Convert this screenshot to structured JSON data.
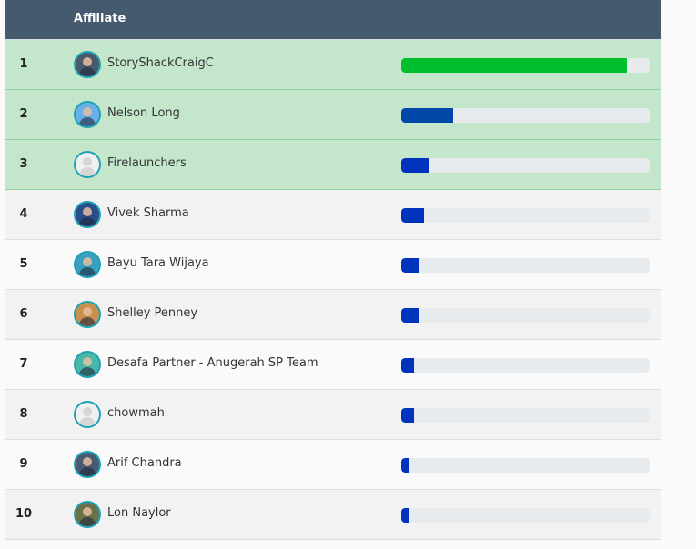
{
  "header": {
    "affiliate_label": "Affiliate"
  },
  "colors": {
    "header_bg": "#455a6e",
    "top_row_bg": "#c4e6cb",
    "first_bar": "#00bf2f",
    "second_bar": "#0047a8",
    "other_bar": "#0033bb",
    "track": "#e8ebee"
  },
  "rows": [
    {
      "rank": "1",
      "name": "StoryShackCraigC",
      "progress": 91,
      "avatar": "photo",
      "avatar_color": "#4a5a6a"
    },
    {
      "rank": "2",
      "name": "Nelson Long",
      "progress": 21,
      "avatar": "photo",
      "avatar_color": "#6ab0e8"
    },
    {
      "rank": "3",
      "name": "Firelaunchers",
      "progress": 11,
      "avatar": "default",
      "avatar_color": "#f0f0f0"
    },
    {
      "rank": "4",
      "name": "Vivek Sharma",
      "progress": 9,
      "avatar": "photo",
      "avatar_color": "#2a4e8a"
    },
    {
      "rank": "5",
      "name": "Bayu Tara Wijaya",
      "progress": 7,
      "avatar": "photo",
      "avatar_color": "#3aa0c0"
    },
    {
      "rank": "6",
      "name": "Shelley Penney",
      "progress": 7,
      "avatar": "photo",
      "avatar_color": "#c8904a"
    },
    {
      "rank": "7",
      "name": "Desafa Partner - Anugerah SP Team",
      "progress": 5,
      "avatar": "photo",
      "avatar_color": "#4ab8a8"
    },
    {
      "rank": "8",
      "name": "chowmah",
      "progress": 5,
      "avatar": "default",
      "avatar_color": "#f0f0f0"
    },
    {
      "rank": "9",
      "name": "Arif Chandra",
      "progress": 3,
      "avatar": "photo",
      "avatar_color": "#4a5a70"
    },
    {
      "rank": "10",
      "name": "Lon Naylor",
      "progress": 3,
      "avatar": "photo",
      "avatar_color": "#6a7048"
    }
  ]
}
